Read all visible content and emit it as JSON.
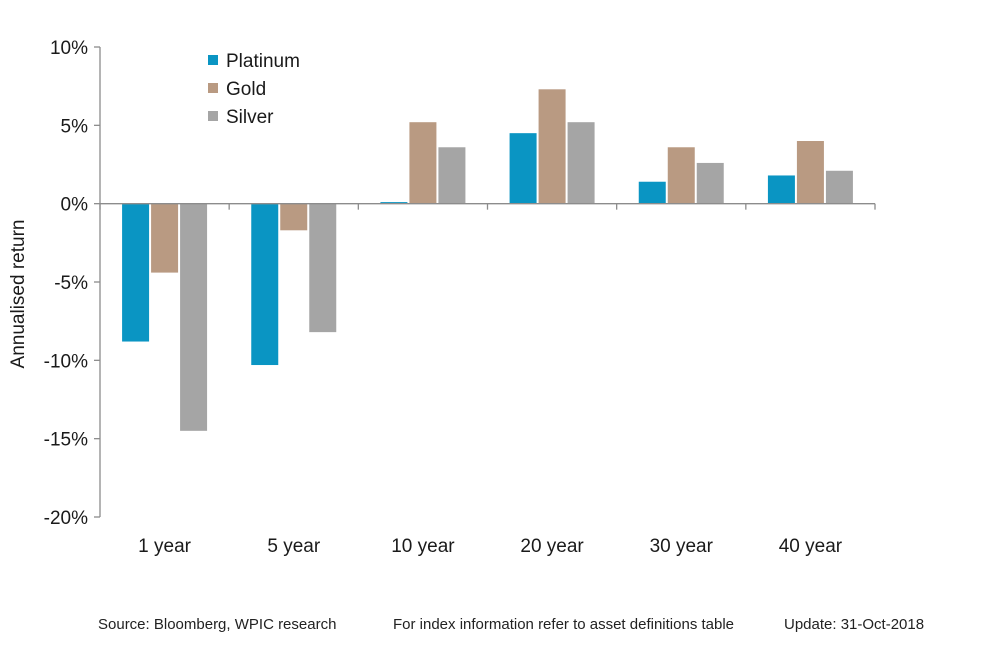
{
  "chart_data": {
    "type": "bar",
    "categories": [
      "1 year",
      "5 year",
      "10 year",
      "20 year",
      "30 year",
      "40 year"
    ],
    "series": [
      {
        "name": "Platinum",
        "color": "#0a95c3",
        "values": [
          -8.8,
          -10.3,
          0.1,
          4.5,
          1.4,
          1.8
        ]
      },
      {
        "name": "Gold",
        "color": "#b99a82",
        "values": [
          -4.4,
          -1.7,
          5.2,
          7.3,
          3.6,
          4.0
        ]
      },
      {
        "name": "Silver",
        "color": "#a5a5a5",
        "values": [
          -14.5,
          -8.2,
          3.6,
          5.2,
          2.6,
          2.1
        ]
      }
    ],
    "ylabel": "Annualised return",
    "ylim": [
      -20,
      10
    ],
    "yticks": [
      10,
      5,
      0,
      -5,
      -10,
      -15,
      -20
    ],
    "ytick_labels": [
      "10%",
      "5%",
      "0%",
      "-5%",
      "-10%",
      "-15%",
      "-20%"
    ],
    "legend_position": "top-left",
    "grid": false
  },
  "footer": {
    "source": "Source: Bloomberg, WPIC research",
    "note": "For index information refer to asset definitions table",
    "update": "Update: 31-Oct-2018"
  }
}
